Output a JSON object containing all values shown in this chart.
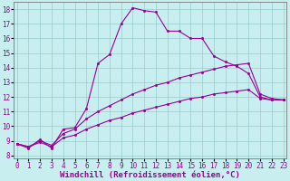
{
  "bg_color": "#c8eef0",
  "grid_color": "#99cccc",
  "line_color": "#990099",
  "xlim": [
    -0.3,
    23.3
  ],
  "ylim": [
    7.8,
    18.5
  ],
  "xticks": [
    0,
    1,
    2,
    3,
    4,
    5,
    6,
    7,
    8,
    9,
    10,
    11,
    12,
    13,
    14,
    15,
    16,
    17,
    18,
    19,
    20,
    21,
    22,
    23
  ],
  "yticks": [
    8,
    9,
    10,
    11,
    12,
    13,
    14,
    15,
    16,
    17,
    18
  ],
  "xlabel": "Windchill (Refroidissement éolien,°C)",
  "tick_fontsize": 5.5,
  "xlabel_fontsize": 6.5,
  "line1_x": [
    0,
    1,
    2,
    3,
    4,
    5,
    6,
    7,
    8,
    9,
    10,
    11,
    12,
    13,
    14,
    15,
    16,
    17,
    18,
    19,
    20,
    21,
    22,
    23
  ],
  "line1_y": [
    8.8,
    8.5,
    9.1,
    8.5,
    9.8,
    9.9,
    11.2,
    14.3,
    14.9,
    17.0,
    18.1,
    17.9,
    17.8,
    16.5,
    16.5,
    16.0,
    16.0,
    14.8,
    14.4,
    14.1,
    13.6,
    12.0,
    11.8,
    11.8
  ],
  "line2_x": [
    0,
    1,
    2,
    3,
    4,
    5,
    6,
    7,
    8,
    9,
    10,
    11,
    12,
    13,
    14,
    15,
    16,
    17,
    18,
    19,
    20,
    21,
    22,
    23
  ],
  "line2_y": [
    8.8,
    8.6,
    9.0,
    8.7,
    9.5,
    9.8,
    10.5,
    11.0,
    11.4,
    11.8,
    12.2,
    12.5,
    12.8,
    13.0,
    13.3,
    13.5,
    13.7,
    13.9,
    14.1,
    14.2,
    14.3,
    12.2,
    11.9,
    11.8
  ],
  "line3_x": [
    0,
    1,
    2,
    3,
    4,
    5,
    6,
    7,
    8,
    9,
    10,
    11,
    12,
    13,
    14,
    15,
    16,
    17,
    18,
    19,
    20,
    21,
    22,
    23
  ],
  "line3_y": [
    8.8,
    8.6,
    8.9,
    8.6,
    9.2,
    9.4,
    9.8,
    10.1,
    10.4,
    10.6,
    10.9,
    11.1,
    11.3,
    11.5,
    11.7,
    11.9,
    12.0,
    12.2,
    12.3,
    12.4,
    12.5,
    11.9,
    11.8,
    11.8
  ]
}
